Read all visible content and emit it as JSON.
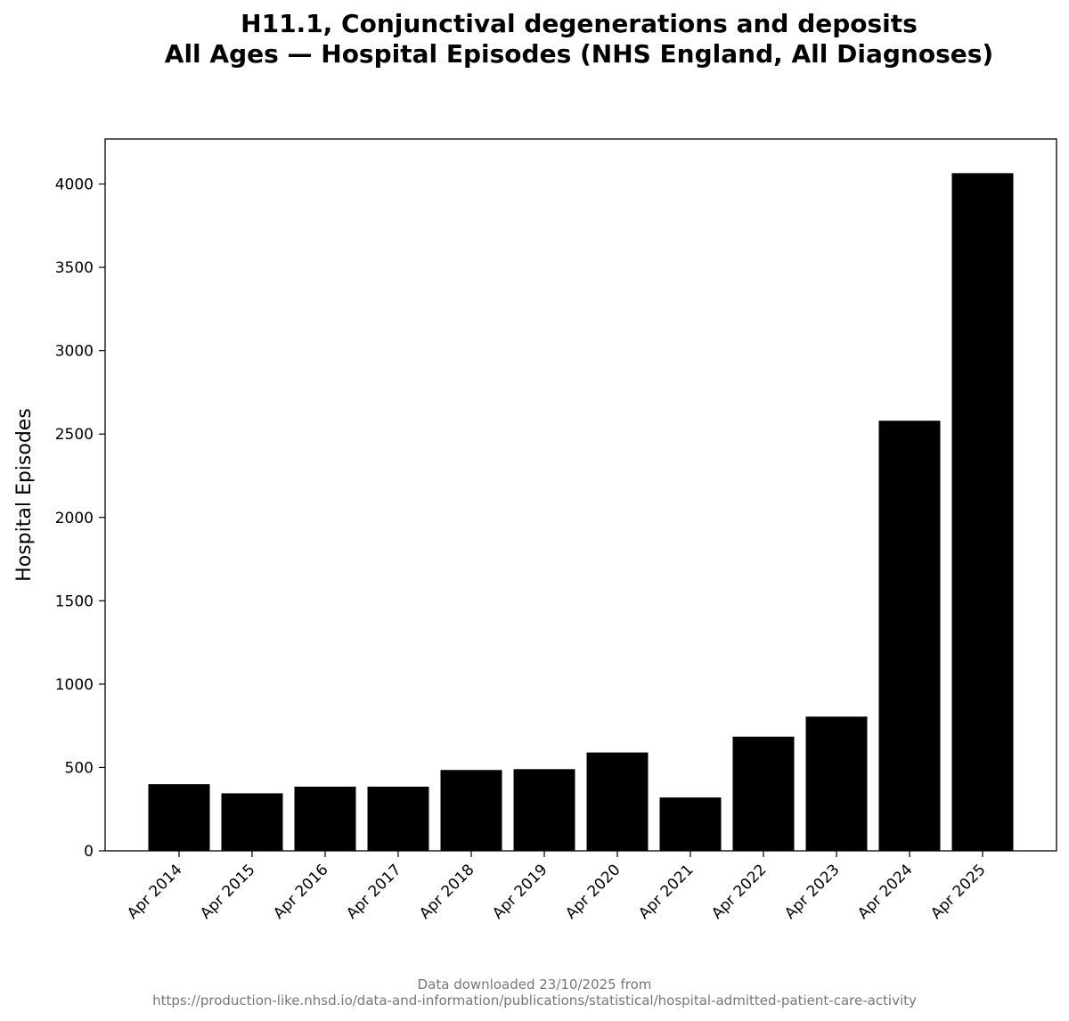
{
  "chart_data": {
    "type": "bar",
    "title_line1": "H11.1, Conjunctival degenerations and deposits",
    "title_line2": "All Ages — Hospital Episodes (NHS England, All Diagnoses)",
    "xlabel": "",
    "ylabel": "Hospital Episodes",
    "categories": [
      "Apr 2014",
      "Apr 2015",
      "Apr 2016",
      "Apr 2017",
      "Apr 2018",
      "Apr 2019",
      "Apr 2020",
      "Apr 2021",
      "Apr 2022",
      "Apr 2023",
      "Apr 2024",
      "Apr 2025"
    ],
    "values": [
      400,
      345,
      385,
      385,
      485,
      490,
      590,
      320,
      685,
      805,
      2580,
      4065
    ],
    "ylim": [
      0,
      4270
    ],
    "yticks": [
      0,
      500,
      1000,
      1500,
      2000,
      2500,
      3000,
      3500,
      4000
    ],
    "bar_color": "#000000",
    "grid": false,
    "legend": "none"
  },
  "footer": {
    "line1": "Data downloaded 23/10/2025 from",
    "line2": "https://production-like.nhsd.io/data-and-information/publications/statistical/hospital-admitted-patient-care-activity"
  }
}
